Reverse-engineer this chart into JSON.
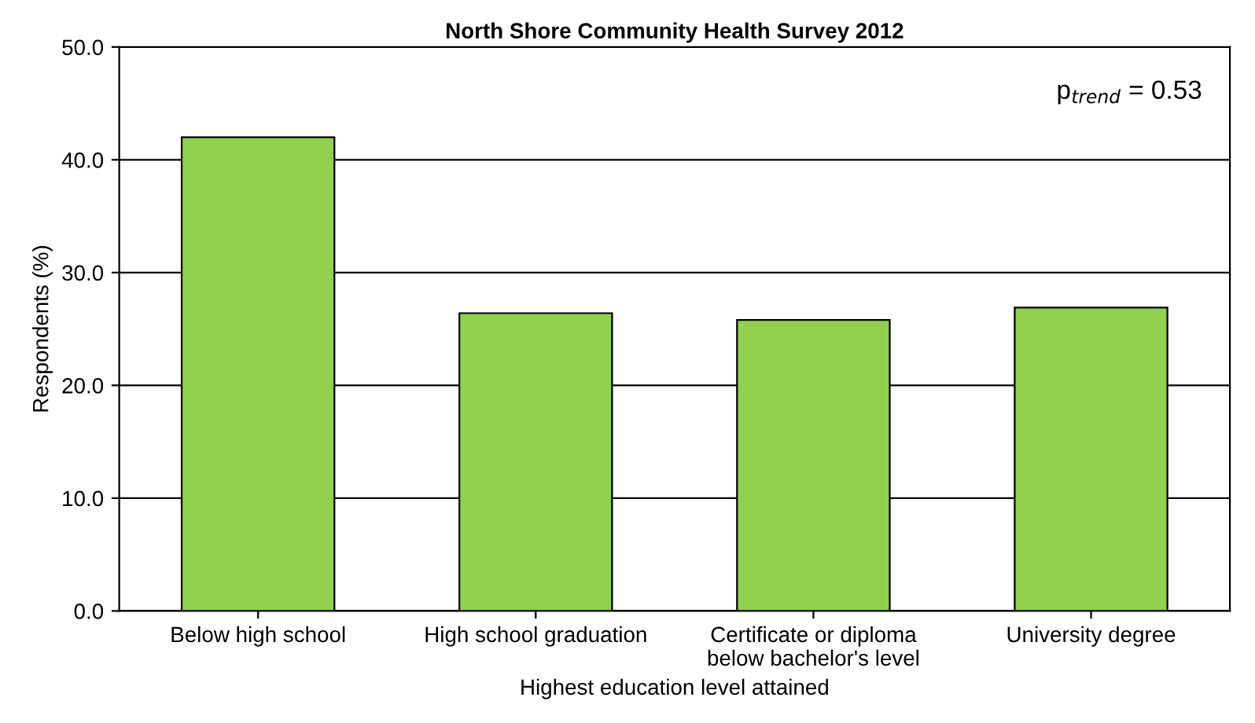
{
  "chart_data": {
    "type": "bar",
    "title": "North Shore Community Health Survey 2012",
    "xlabel": "Highest education level attained",
    "ylabel": "Respondents (%)",
    "categories": [
      "Below high school",
      "High school graduation",
      "Certificate or diploma\nbelow bachelor's level",
      "University degree"
    ],
    "values": [
      42.0,
      26.4,
      25.8,
      26.9
    ],
    "color": "#92d050",
    "ylim": [
      0,
      50
    ],
    "yticks": [
      {
        "value": 0,
        "label": "0.0"
      },
      {
        "value": 10,
        "label": "10.0"
      },
      {
        "value": 20,
        "label": "20.0"
      },
      {
        "value": 30,
        "label": "30.0"
      },
      {
        "value": 40,
        "label": "40.0"
      },
      {
        "value": 50,
        "label": "50.0"
      }
    ],
    "grid": "y",
    "legend": false,
    "annotations": [
      "p$_{trend}$ = 0.53"
    ]
  }
}
